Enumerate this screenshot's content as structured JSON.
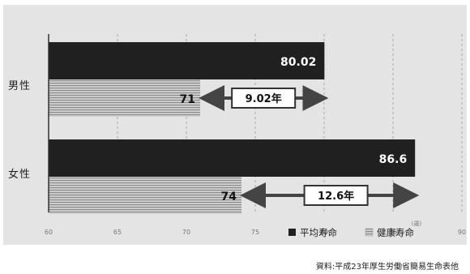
{
  "chart_data": {
    "type": "bar",
    "orientation": "horizontal",
    "categories": [
      "男性",
      "女性"
    ],
    "series": [
      {
        "name": "平均寿命",
        "values": [
          80.02,
          86.6
        ],
        "labels": [
          "80.02",
          "86.6"
        ],
        "color": "#202020",
        "pattern": "solid"
      },
      {
        "name": "健康寿命",
        "values": [
          71,
          74
        ],
        "labels": [
          "71",
          "74"
        ],
        "color": "#b5b5b5",
        "pattern": "horizontal-stripes"
      }
    ],
    "gaps": [
      {
        "category": "男性",
        "label": "9.02年",
        "value": 9.02
      },
      {
        "category": "女性",
        "label": "12.6年",
        "value": 12.6
      }
    ],
    "xlim": [
      60,
      90
    ],
    "xticks": [
      60,
      65,
      70,
      75,
      80,
      85,
      90
    ],
    "xtick_labels": [
      "60",
      "65",
      "70",
      "75",
      "80",
      "85",
      "90"
    ],
    "xunit": "(歳)",
    "grid": "vertical dashed",
    "legend_position": "bottom-right",
    "title": "",
    "xlabel": "",
    "ylabel": ""
  },
  "source_note": "資料:平成23年厚生労働省簡易生命表他"
}
